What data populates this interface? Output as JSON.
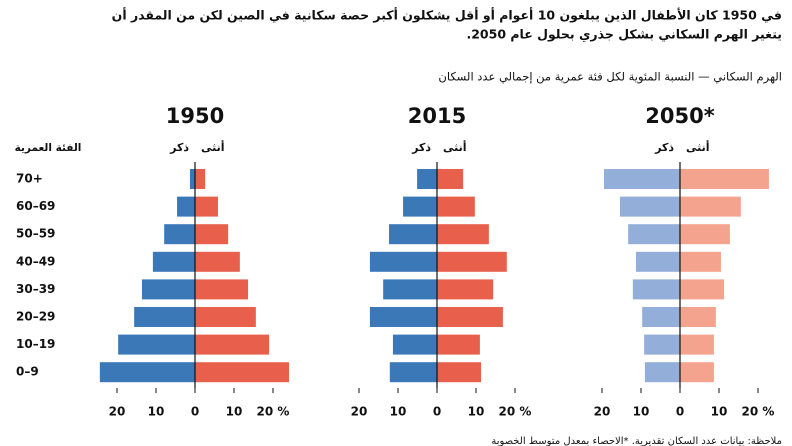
{
  "header": {
    "lines": [
      "في 1950 كان الأطفال الذين يبلغون 10 أعوام أو أقل يشكلون أكبر حصة سكانية في الصين لكن من المقدر أن",
      "يتغير الهرم السكاني بشكل جذري بحلول عام 2050."
    ],
    "subtitle": "الهرم السكاني — النسبة المئوية لكل فئة عمرية من إجمالي عدد السكان",
    "category_axis_label": "الفئة العمرية",
    "categories": [
      "70+",
      "60–69",
      "50–59",
      "40–49",
      "30–39",
      "20–29",
      "10–19",
      "0–9"
    ],
    "note": "ملاحظة: بيانات عدد السكان تقديرية. *الاحصاء بمعدل متوسط الخصوبة"
  },
  "chart_data": [
    {
      "type": "pyramid",
      "title": "1950",
      "xlim": [
        -25,
        25
      ],
      "xticks": [
        {
          "value": -20,
          "label": "20"
        },
        {
          "value": -10,
          "label": "10"
        },
        0,
        10,
        {
          "value": 20,
          "label": "20 %"
        }
      ],
      "series": [
        {
          "name": "ذكر",
          "color": "#3a78b8",
          "values": [
            -1.3,
            -4.6,
            -7.9,
            -10.8,
            -13.6,
            -15.6,
            -19.7,
            -24.4
          ]
        },
        {
          "name": "أنثى",
          "color": "#e8604c",
          "values": [
            2.6,
            5.9,
            8.5,
            11.5,
            13.6,
            15.6,
            19.0,
            24.1
          ]
        }
      ]
    },
    {
      "type": "pyramid",
      "title": "2015",
      "xlim": [
        -25,
        25
      ],
      "xticks": [
        {
          "value": -20,
          "label": "20"
        },
        {
          "value": -10,
          "label": "10"
        },
        0,
        10,
        {
          "value": 20,
          "label": "20 %"
        }
      ],
      "series": [
        {
          "name": "ذكر",
          "color": "#3a78b8",
          "values": [
            -5.1,
            -8.7,
            -12.3,
            -17.2,
            -13.8,
            -17.2,
            -11.3,
            -12.1
          ]
        },
        {
          "name": "أنثى",
          "color": "#e8604c",
          "values": [
            6.7,
            9.7,
            13.3,
            17.9,
            14.4,
            16.9,
            11.0,
            11.3
          ]
        }
      ]
    },
    {
      "type": "pyramid",
      "title": "2050*",
      "xlim": [
        -25,
        25
      ],
      "xticks": [
        {
          "value": -20,
          "label": "20"
        },
        {
          "value": -10,
          "label": "10"
        },
        0,
        10,
        {
          "value": 20,
          "label": "20 %"
        }
      ],
      "series": [
        {
          "name": "ذكر",
          "color": "#93aed8",
          "values": [
            -19.5,
            -15.4,
            -13.3,
            -11.3,
            -12.1,
            -9.7,
            -9.2,
            -9.0
          ]
        },
        {
          "name": "أنثى",
          "color": "#f4a48e",
          "values": [
            22.8,
            15.6,
            12.8,
            10.5,
            11.3,
            9.2,
            8.7,
            8.7
          ]
        }
      ]
    }
  ]
}
